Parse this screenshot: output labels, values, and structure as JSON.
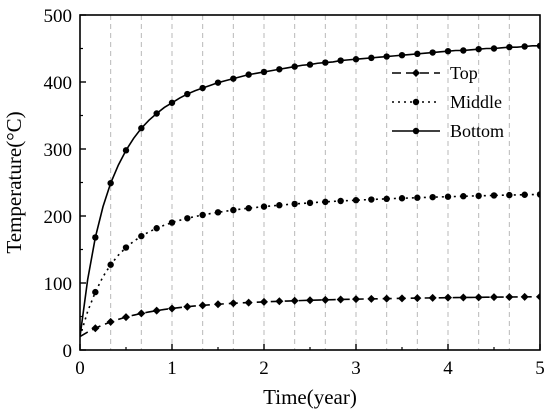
{
  "chart_data": {
    "type": "line",
    "title": "",
    "xlabel": "Time(year)",
    "ylabel": "Temperature(°C)",
    "xlim": [
      0,
      5
    ],
    "ylim": [
      0,
      500
    ],
    "xticks": [
      0,
      1,
      2,
      3,
      4,
      5
    ],
    "yticks": [
      0,
      100,
      200,
      300,
      400,
      500
    ],
    "xtick_labels": [
      "0",
      "1",
      "2",
      "3",
      "4",
      "5"
    ],
    "ytick_labels": [
      "0",
      "100",
      "200",
      "300",
      "400",
      "500"
    ],
    "grid": "vertical dashed",
    "legend_position": "right",
    "series": [
      {
        "name": "Top",
        "line_style": "dashed",
        "marker": "diamond",
        "x": [
          0,
          0.0833,
          0.1667,
          0.25,
          0.3333,
          0.4167,
          0.5,
          0.5833,
          0.6667,
          0.75,
          0.8333,
          0.9167,
          1.0,
          1.0833,
          1.1667,
          1.25,
          1.3333,
          1.4167,
          1.5,
          1.5833,
          1.6667,
          1.75,
          1.8333,
          1.9167,
          2.0,
          2.0833,
          2.1667,
          2.25,
          2.3333,
          2.4167,
          2.5,
          2.5833,
          2.6667,
          2.75,
          2.8333,
          2.9167,
          3.0,
          3.0833,
          3.1667,
          3.25,
          3.3333,
          3.4167,
          3.5,
          3.5833,
          3.6667,
          3.75,
          3.8333,
          3.9167,
          4.0,
          4.0833,
          4.1667,
          4.25,
          4.3333,
          4.4167,
          4.5,
          4.5833,
          4.6667,
          4.75,
          4.8333,
          4.9167,
          5.0
        ],
        "values": [
          20,
          26.7,
          32.5,
          37.5,
          41.9,
          45.7,
          49.1,
          52.0,
          54.6,
          56.8,
          58.8,
          60.5,
          62.0,
          63.4,
          64.6,
          65.7,
          66.6,
          67.5,
          68.3,
          69.0,
          69.7,
          70.3,
          70.8,
          71.3,
          71.8,
          72.3,
          72.7,
          73.1,
          73.5,
          73.9,
          74.2,
          74.5,
          74.8,
          75.1,
          75.4,
          75.6,
          75.9,
          76.1,
          76.3,
          76.5,
          76.7,
          76.9,
          77.1,
          77.3,
          77.5,
          77.6,
          77.8,
          77.9,
          78.1,
          78.2,
          78.4,
          78.5,
          78.6,
          78.8,
          78.9,
          79.0,
          79.1,
          79.2,
          79.3,
          79.4,
          79.5
        ]
      },
      {
        "name": "Middle",
        "line_style": "dotted",
        "marker": "circle",
        "x": [
          0,
          0.0833,
          0.1667,
          0.25,
          0.3333,
          0.4167,
          0.5,
          0.5833,
          0.6667,
          0.75,
          0.8333,
          0.9167,
          1.0,
          1.0833,
          1.1667,
          1.25,
          1.3333,
          1.4167,
          1.5,
          1.5833,
          1.6667,
          1.75,
          1.8333,
          1.9167,
          2.0,
          2.0833,
          2.1667,
          2.25,
          2.3333,
          2.4167,
          2.5,
          2.5833,
          2.6667,
          2.75,
          2.8333,
          2.9167,
          3.0,
          3.0833,
          3.1667,
          3.25,
          3.3333,
          3.4167,
          3.5,
          3.5833,
          3.6667,
          3.75,
          3.8333,
          3.9167,
          4.0,
          4.0833,
          4.1667,
          4.25,
          4.3333,
          4.4167,
          4.5,
          4.5833,
          4.6667,
          4.75,
          4.8333,
          4.9167,
          5.0
        ],
        "values": [
          20,
          57.6,
          86.4,
          109.4,
          127.3,
          141.5,
          152.9,
          162.2,
          169.9,
          176.3,
          181.7,
          186.3,
          190.2,
          193.6,
          196.6,
          199.2,
          201.5,
          203.6,
          205.5,
          207.2,
          208.8,
          210.3,
          211.6,
          212.8,
          214.0,
          215.1,
          216.1,
          217.1,
          218.0,
          218.8,
          219.6,
          220.4,
          221.1,
          221.8,
          222.4,
          223.0,
          223.6,
          224.1,
          224.6,
          225.1,
          225.6,
          226.1,
          226.5,
          226.9,
          227.3,
          227.7,
          228.1,
          228.5,
          228.8,
          229.1,
          229.5,
          229.8,
          230.1,
          230.4,
          230.7,
          231.0,
          231.2,
          231.5,
          231.7,
          232.0,
          232.2
        ]
      },
      {
        "name": "Bottom",
        "line_style": "solid",
        "marker": "circle",
        "x": [
          0,
          0.0833,
          0.1667,
          0.25,
          0.3333,
          0.4167,
          0.5,
          0.5833,
          0.6667,
          0.75,
          0.8333,
          0.9167,
          1.0,
          1.0833,
          1.1667,
          1.25,
          1.3333,
          1.4167,
          1.5,
          1.5833,
          1.6667,
          1.75,
          1.8333,
          1.9167,
          2.0,
          2.0833,
          2.1667,
          2.25,
          2.3333,
          2.4167,
          2.5,
          2.5833,
          2.6667,
          2.75,
          2.8333,
          2.9167,
          3.0,
          3.0833,
          3.1667,
          3.25,
          3.3333,
          3.4167,
          3.5,
          3.5833,
          3.6667,
          3.75,
          3.8333,
          3.9167,
          4.0,
          4.0833,
          4.1667,
          4.25,
          4.3333,
          4.4167,
          4.5,
          4.5833,
          4.6667,
          4.75,
          4.8333,
          4.9167,
          5.0
        ],
        "values": [
          20,
          105,
          168,
          214,
          249,
          276,
          298,
          316,
          331,
          343,
          353,
          362,
          369,
          376,
          382,
          387,
          391,
          395,
          399,
          402,
          405,
          408,
          411,
          413,
          415,
          417,
          419,
          421,
          423,
          425,
          426,
          428,
          429,
          430,
          432,
          433,
          434,
          435,
          436,
          437,
          438,
          439,
          440,
          441,
          442,
          443,
          444,
          445,
          446,
          447,
          447,
          448,
          449,
          450,
          450,
          451,
          452,
          452,
          453,
          454,
          454
        ]
      }
    ]
  }
}
